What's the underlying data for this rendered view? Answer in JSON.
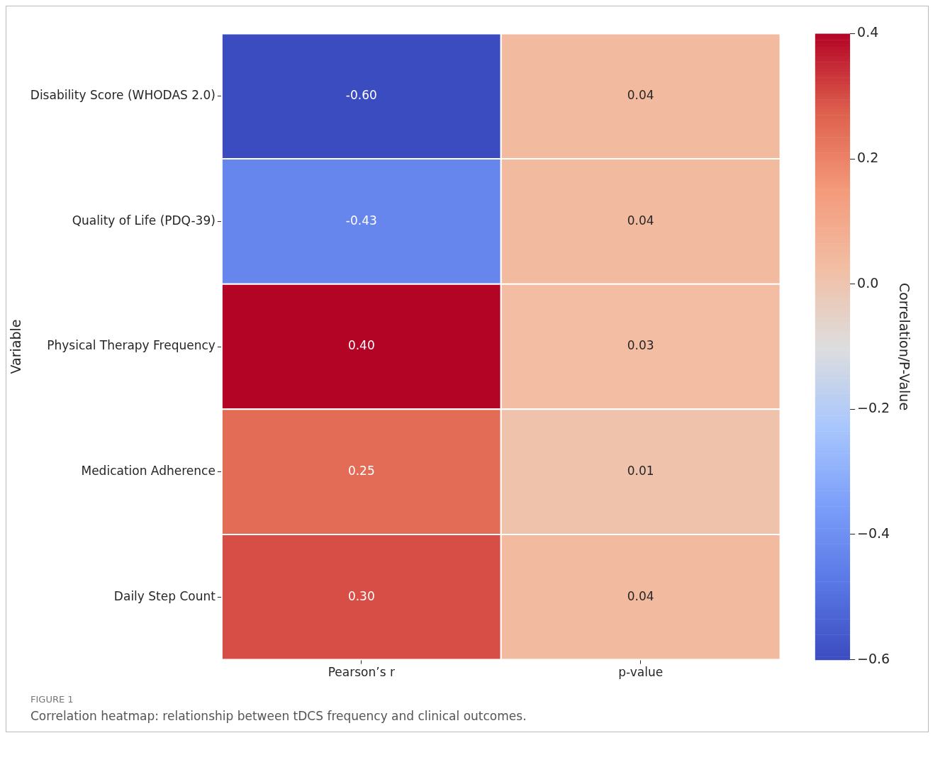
{
  "chart_data": {
    "type": "heatmap",
    "categories": [
      "Pearson’s r",
      "p-value"
    ],
    "y_categories": [
      "Disability Score (WHODAS 2.0)",
      "Quality of Life (PDQ-39)",
      "Physical Therapy Frequency",
      "Medication Adherence",
      "Daily Step Count"
    ],
    "ylabel": "Variable",
    "clabel": "Correlation/P-Value",
    "cells": [
      [
        -0.6,
        0.04
      ],
      [
        -0.43,
        0.04
      ],
      [
        0.4,
        0.03
      ],
      [
        0.25,
        0.01
      ],
      [
        0.3,
        0.04
      ]
    ],
    "cell_labels": [
      [
        "-0.60",
        "0.04"
      ],
      [
        "-0.43",
        "0.04"
      ],
      [
        "0.40",
        "0.03"
      ],
      [
        "0.25",
        "0.01"
      ],
      [
        "0.30",
        "0.04"
      ]
    ],
    "clim": [
      -0.6,
      0.4
    ],
    "cticks": [
      {
        "value": -0.6,
        "label": "−0.6"
      },
      {
        "value": -0.4,
        "label": "−0.4"
      },
      {
        "value": -0.2,
        "label": "−0.2"
      },
      {
        "value": 0,
        "label": "0.0"
      },
      0.2,
      0.4
    ],
    "annotations": [
      "FIGURE 1",
      "Correlation heatmap: relationship between tDCS frequency and clinical outcomes."
    ]
  }
}
